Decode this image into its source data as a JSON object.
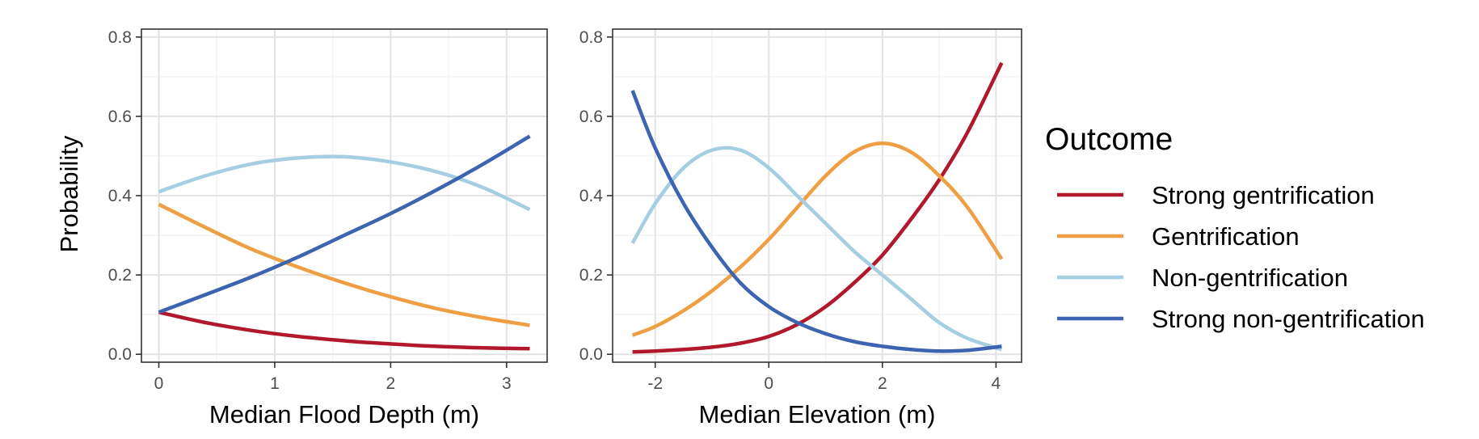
{
  "chart_data": [
    {
      "type": "line",
      "xlabel": "Median Flood Depth (m)",
      "ylabel": "Probability",
      "xlim": [
        -0.15,
        3.35
      ],
      "ylim": [
        -0.02,
        0.82
      ],
      "x_ticks": [
        0,
        1,
        2,
        3
      ],
      "x_tick_labels": [
        "0",
        "1",
        "2",
        "3"
      ],
      "y_ticks": [
        0,
        0.2,
        0.4,
        0.6,
        0.8
      ],
      "y_tick_labels": [
        "0.0",
        "0.2",
        "0.4",
        "0.6",
        "0.8"
      ],
      "grid": true,
      "x": [
        0,
        0.4,
        0.8,
        1.2,
        1.6,
        2.0,
        2.4,
        2.8,
        3.2
      ],
      "series": [
        {
          "name": "Strong gentrification",
          "color": "#b2182b",
          "values": [
            0.106,
            0.08,
            0.06,
            0.045,
            0.034,
            0.026,
            0.02,
            0.016,
            0.014
          ]
        },
        {
          "name": "Gentrification",
          "color": "#ef9f43",
          "values": [
            0.378,
            0.32,
            0.265,
            0.22,
            0.18,
            0.145,
            0.115,
            0.092,
            0.073
          ]
        },
        {
          "name": "Non-gentrification",
          "color": "#a6cee3",
          "values": [
            0.41,
            0.45,
            0.48,
            0.495,
            0.498,
            0.485,
            0.46,
            0.42,
            0.365
          ]
        },
        {
          "name": "Strong non-gentrification",
          "color": "#3c64b1",
          "values": [
            0.106,
            0.15,
            0.195,
            0.245,
            0.3,
            0.355,
            0.415,
            0.48,
            0.55
          ]
        }
      ]
    },
    {
      "type": "line",
      "xlabel": "Median Elevation (m)",
      "ylabel": "",
      "xlim": [
        -2.75,
        4.45
      ],
      "ylim": [
        -0.02,
        0.82
      ],
      "x_ticks": [
        -2,
        0,
        2,
        4
      ],
      "x_tick_labels": [
        "-2",
        "0",
        "2",
        "4"
      ],
      "y_ticks": [
        0,
        0.2,
        0.4,
        0.6,
        0.8
      ],
      "y_tick_labels": [
        "0.0",
        "0.2",
        "0.4",
        "0.6",
        "0.8"
      ],
      "grid": true,
      "x": [
        -2.4,
        -2.0,
        -1.5,
        -1.0,
        -0.5,
        0,
        0.5,
        1.0,
        1.5,
        2.0,
        2.5,
        3.0,
        3.5,
        4.1
      ],
      "series": [
        {
          "name": "Strong gentrification",
          "color": "#b2182b",
          "values": [
            0.006,
            0.008,
            0.012,
            0.018,
            0.028,
            0.045,
            0.075,
            0.12,
            0.18,
            0.25,
            0.34,
            0.44,
            0.56,
            0.735
          ]
        },
        {
          "name": "Gentrification",
          "color": "#ef9f43",
          "values": [
            0.048,
            0.07,
            0.11,
            0.16,
            0.22,
            0.29,
            0.37,
            0.45,
            0.51,
            0.532,
            0.51,
            0.45,
            0.37,
            0.24
          ]
        },
        {
          "name": "Non-gentrification",
          "color": "#a6cee3",
          "values": [
            0.28,
            0.38,
            0.47,
            0.515,
            0.515,
            0.47,
            0.4,
            0.33,
            0.26,
            0.2,
            0.14,
            0.08,
            0.04,
            0.012
          ]
        },
        {
          "name": "Strong non-gentrification",
          "color": "#3c64b1",
          "values": [
            0.665,
            0.52,
            0.38,
            0.27,
            0.18,
            0.12,
            0.08,
            0.052,
            0.032,
            0.02,
            0.012,
            0.008,
            0.01,
            0.02
          ]
        }
      ]
    }
  ],
  "legend": {
    "title": "Outcome",
    "items": [
      {
        "label": "Strong gentrification",
        "color": "#b2182b"
      },
      {
        "label": "Gentrification",
        "color": "#ef9f43"
      },
      {
        "label": "Non-gentrification",
        "color": "#a6cee3"
      },
      {
        "label": "Strong non-gentrification",
        "color": "#3c64b1"
      }
    ]
  }
}
